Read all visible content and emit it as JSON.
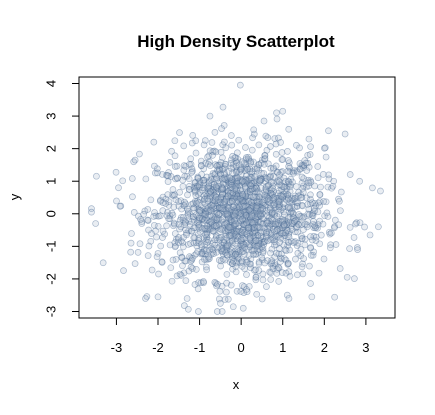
{
  "chart_data": {
    "type": "scatter",
    "title": "High Density Scatterplot",
    "xlabel": "x",
    "ylabel": "y",
    "xlim": [
      -3.9,
      3.7
    ],
    "ylim": [
      -3.2,
      4.2
    ],
    "xticks": [
      -3,
      -2,
      -1,
      0,
      1,
      2,
      3
    ],
    "yticks": [
      -3,
      -2,
      -1,
      0,
      1,
      2,
      3,
      4
    ],
    "x_tick_labels": [
      "-3",
      "-2",
      "-1",
      "0",
      "1",
      "2",
      "3"
    ],
    "y_tick_labels": [
      "-3",
      "-2",
      "-1",
      "0",
      "1",
      "2",
      "3",
      "4"
    ],
    "point_color": "#4a6a94",
    "point_fill_color": "#a8b8cc",
    "point_alpha": 0.25,
    "grid": false,
    "legend": "none",
    "points": [
      [
        -0.02,
        3.95
      ],
      [
        0.85,
        3.1
      ],
      [
        1.0,
        3.15
      ],
      [
        -2.3,
        -2.6
      ],
      [
        -2.0,
        -2.55
      ],
      [
        0.05,
        -2.9
      ],
      [
        -0.5,
        -2.75
      ],
      [
        -3.5,
        -0.3
      ],
      [
        -3.6,
        0.05
      ],
      [
        3.35,
        0.7
      ],
      [
        2.5,
        2.45
      ],
      [
        2.85,
        1.0
      ],
      [
        3.1,
        -0.65
      ],
      [
        3.3,
        -0.4
      ],
      [
        2.55,
        -1.95
      ],
      [
        2.1,
        2.55
      ],
      [
        -2.1,
        2.2
      ],
      [
        1.7,
        -2.55
      ],
      [
        1.15,
        -2.6
      ],
      [
        -0.75,
        3.0
      ],
      [
        0.55,
        2.85
      ],
      [
        -1.3,
        -2.6
      ],
      [
        -2.55,
        1.65
      ],
      [
        -2.95,
        0.8
      ],
      [
        2.8,
        -1.1
      ]
    ],
    "generated_cluster": {
      "count": 1700,
      "distribution": "bivariate normal",
      "x_mean": 0.0,
      "y_mean": 0.0,
      "x_sd": 1.0,
      "y_sd": 1.0
    }
  }
}
